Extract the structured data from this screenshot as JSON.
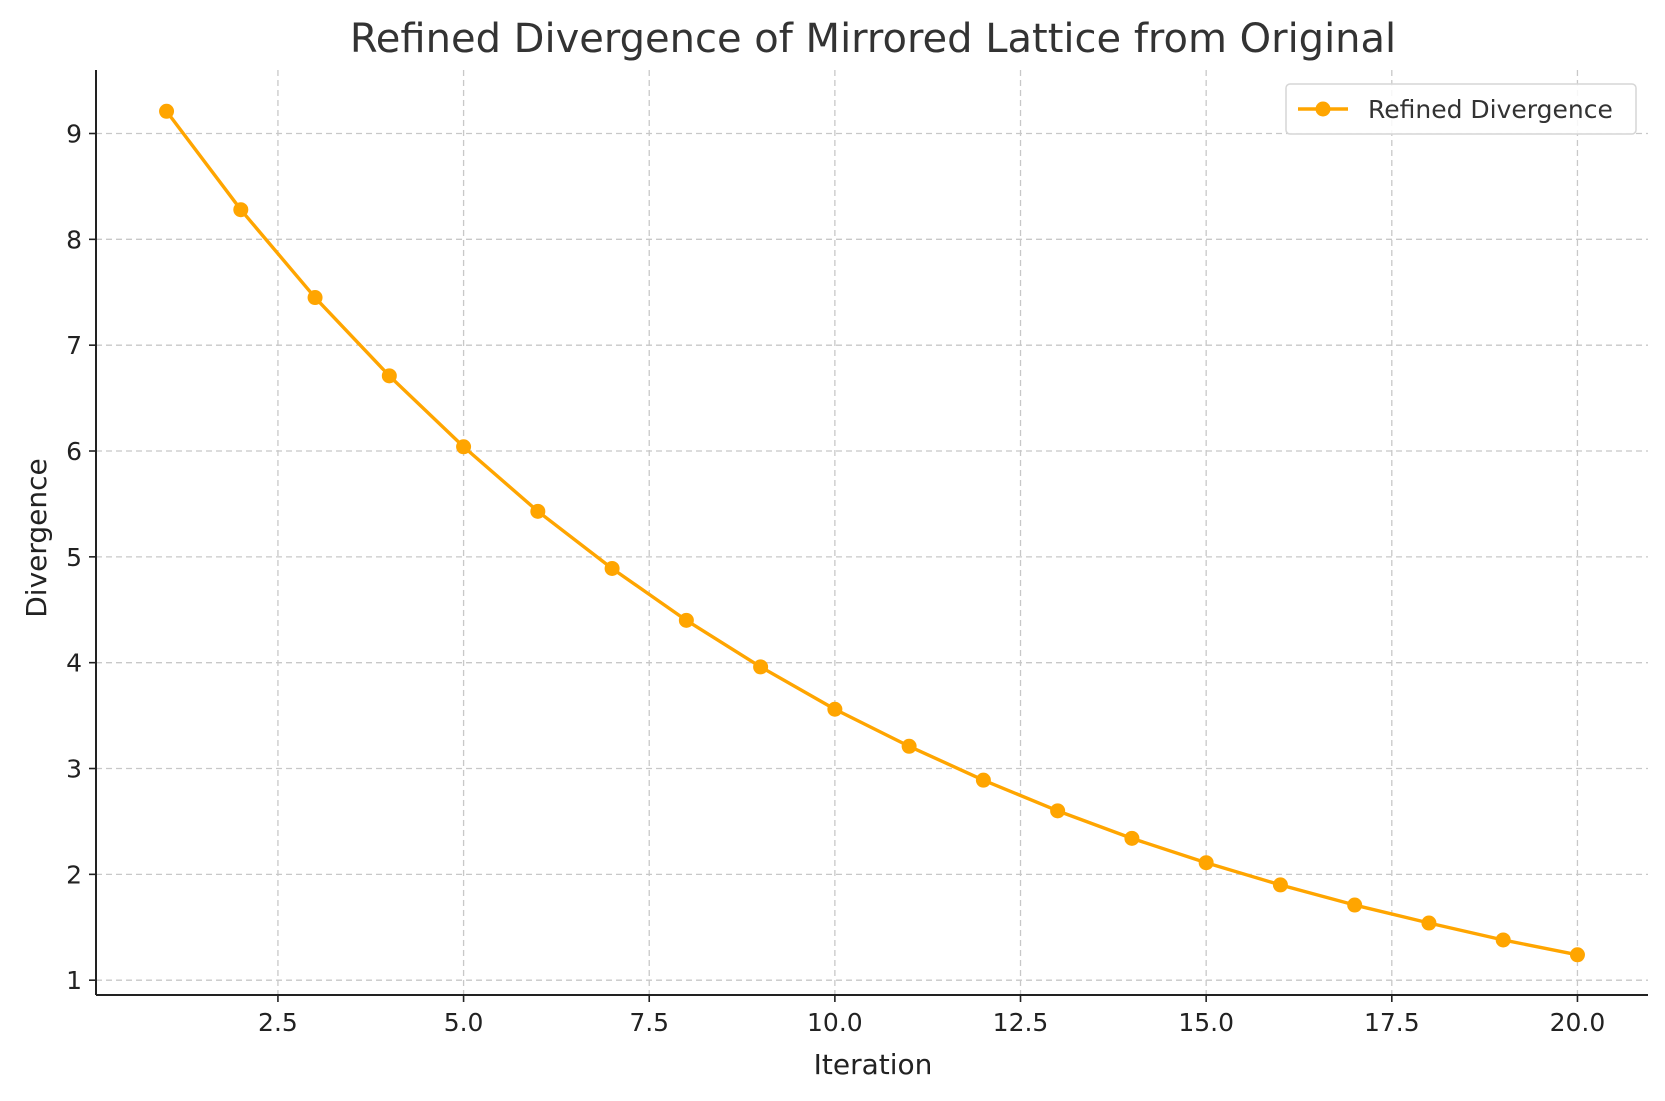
{
  "chart_data": {
    "type": "line",
    "title": "Refined Divergence of Mirrored Lattice from Original",
    "xlabel": "Iteration",
    "ylabel": "Divergence",
    "xlim": [
      0.05,
      20.95
    ],
    "ylim": [
      0.86,
      9.6
    ],
    "xticks": [
      2.5,
      5.0,
      7.5,
      10.0,
      12.5,
      15.0,
      17.5,
      20.0
    ],
    "xtick_labels": [
      "2.5",
      "5.0",
      "7.5",
      "10.0",
      "12.5",
      "15.0",
      "17.5",
      "20.0"
    ],
    "yticks": [
      1,
      2,
      3,
      4,
      5,
      6,
      7,
      8,
      9
    ],
    "ytick_labels": [
      "1",
      "2",
      "3",
      "4",
      "5",
      "6",
      "7",
      "8",
      "9"
    ],
    "grid": true,
    "legend_position": "top-right",
    "series": [
      {
        "name": "Refined Divergence",
        "color": "#FFA500",
        "marker": "circle",
        "x": [
          1,
          2,
          3,
          4,
          5,
          6,
          7,
          8,
          9,
          10,
          11,
          12,
          13,
          14,
          15,
          16,
          17,
          18,
          19,
          20
        ],
        "y": [
          9.21,
          8.28,
          7.45,
          6.71,
          6.04,
          5.43,
          4.89,
          4.4,
          3.96,
          3.56,
          3.21,
          2.89,
          2.6,
          2.34,
          2.11,
          1.9,
          1.71,
          1.54,
          1.38,
          1.24
        ]
      }
    ]
  }
}
